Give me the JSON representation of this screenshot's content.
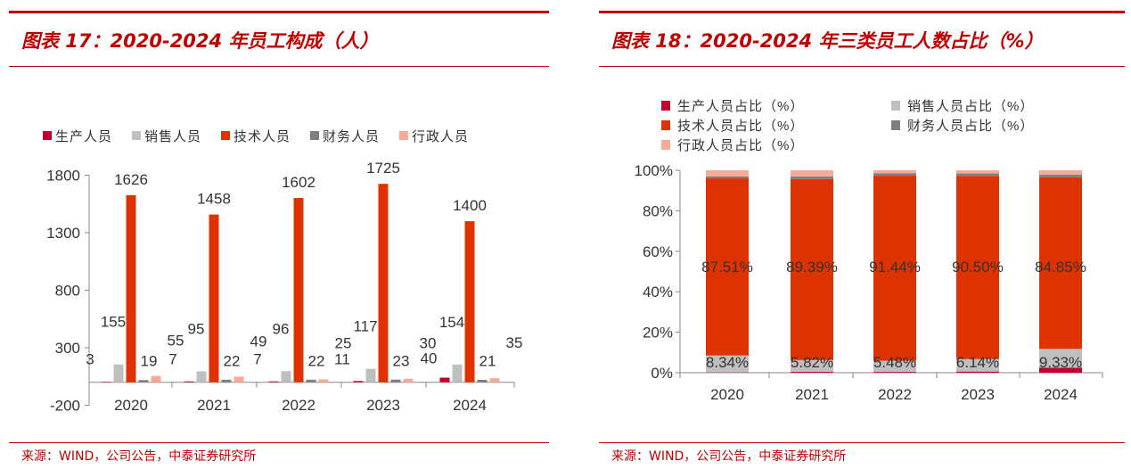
{
  "left": {
    "title": "图表 17：2020-2024 年员工构成（人）",
    "source": "来源：WIND，公司公告，中泰证券研究所"
  },
  "right": {
    "title": "图表 18：2020-2024 年三类员工人数占比（%）",
    "source": "来源：WIND，公司公告，中泰证券研究所"
  },
  "chart_data": [
    {
      "type": "bar",
      "title": "2020-2024 年员工构成（人）",
      "categories": [
        "2020",
        "2021",
        "2022",
        "2023",
        "2024"
      ],
      "ylim": [
        -200,
        1800
      ],
      "yticks": [
        -200,
        300,
        800,
        1300,
        1800
      ],
      "legend_position": "top",
      "series": [
        {
          "name": "生产人员",
          "color": "#c0002f",
          "values": [
            3,
            7,
            7,
            11,
            40
          ]
        },
        {
          "name": "销售人员",
          "color": "#bfbfbf",
          "values": [
            155,
            95,
            96,
            117,
            154
          ]
        },
        {
          "name": "技术人员",
          "color": "#dd3300",
          "values": [
            1626,
            1458,
            1602,
            1725,
            1400
          ]
        },
        {
          "name": "财务人员",
          "color": "#7f7f7f",
          "values": [
            19,
            22,
            22,
            23,
            21
          ]
        },
        {
          "name": "行政人员",
          "color": "#f7a99a",
          "values": [
            55,
            49,
            25,
            30,
            35
          ]
        }
      ]
    },
    {
      "type": "bar",
      "stacked": true,
      "title": "2020-2024 年三类员工人数占比（%）",
      "categories": [
        "2020",
        "2021",
        "2022",
        "2023",
        "2024"
      ],
      "ylim": [
        0,
        100
      ],
      "yticks": [
        "0%",
        "20%",
        "40%",
        "60%",
        "80%",
        "100%"
      ],
      "legend_position": "top",
      "series": [
        {
          "name": "生产人员占比（%）",
          "color": "#c0002f",
          "values": [
            0.16,
            0.43,
            0.4,
            0.58,
            2.42
          ]
        },
        {
          "name": "销售人员占比（%）",
          "color": "#bfbfbf",
          "values": [
            8.34,
            5.82,
            5.48,
            6.14,
            9.33
          ],
          "labels": [
            "8.34%",
            "5.82%",
            "5.48%",
            "6.14%",
            "9.33%"
          ]
        },
        {
          "name": "技术人员占比（%）",
          "color": "#dd3300",
          "values": [
            87.51,
            89.39,
            91.44,
            90.5,
            84.85
          ],
          "labels": [
            "87.51%",
            "89.39%",
            "91.44%",
            "90.50%",
            "84.85%"
          ]
        },
        {
          "name": "财务人员占比（%）",
          "color": "#7f7f7f",
          "values": [
            1.02,
            1.35,
            1.26,
            1.21,
            1.27
          ]
        },
        {
          "name": "行政人员占比（%）",
          "color": "#f7a99a",
          "values": [
            2.96,
            3.0,
            1.43,
            1.57,
            2.12
          ]
        }
      ]
    }
  ]
}
